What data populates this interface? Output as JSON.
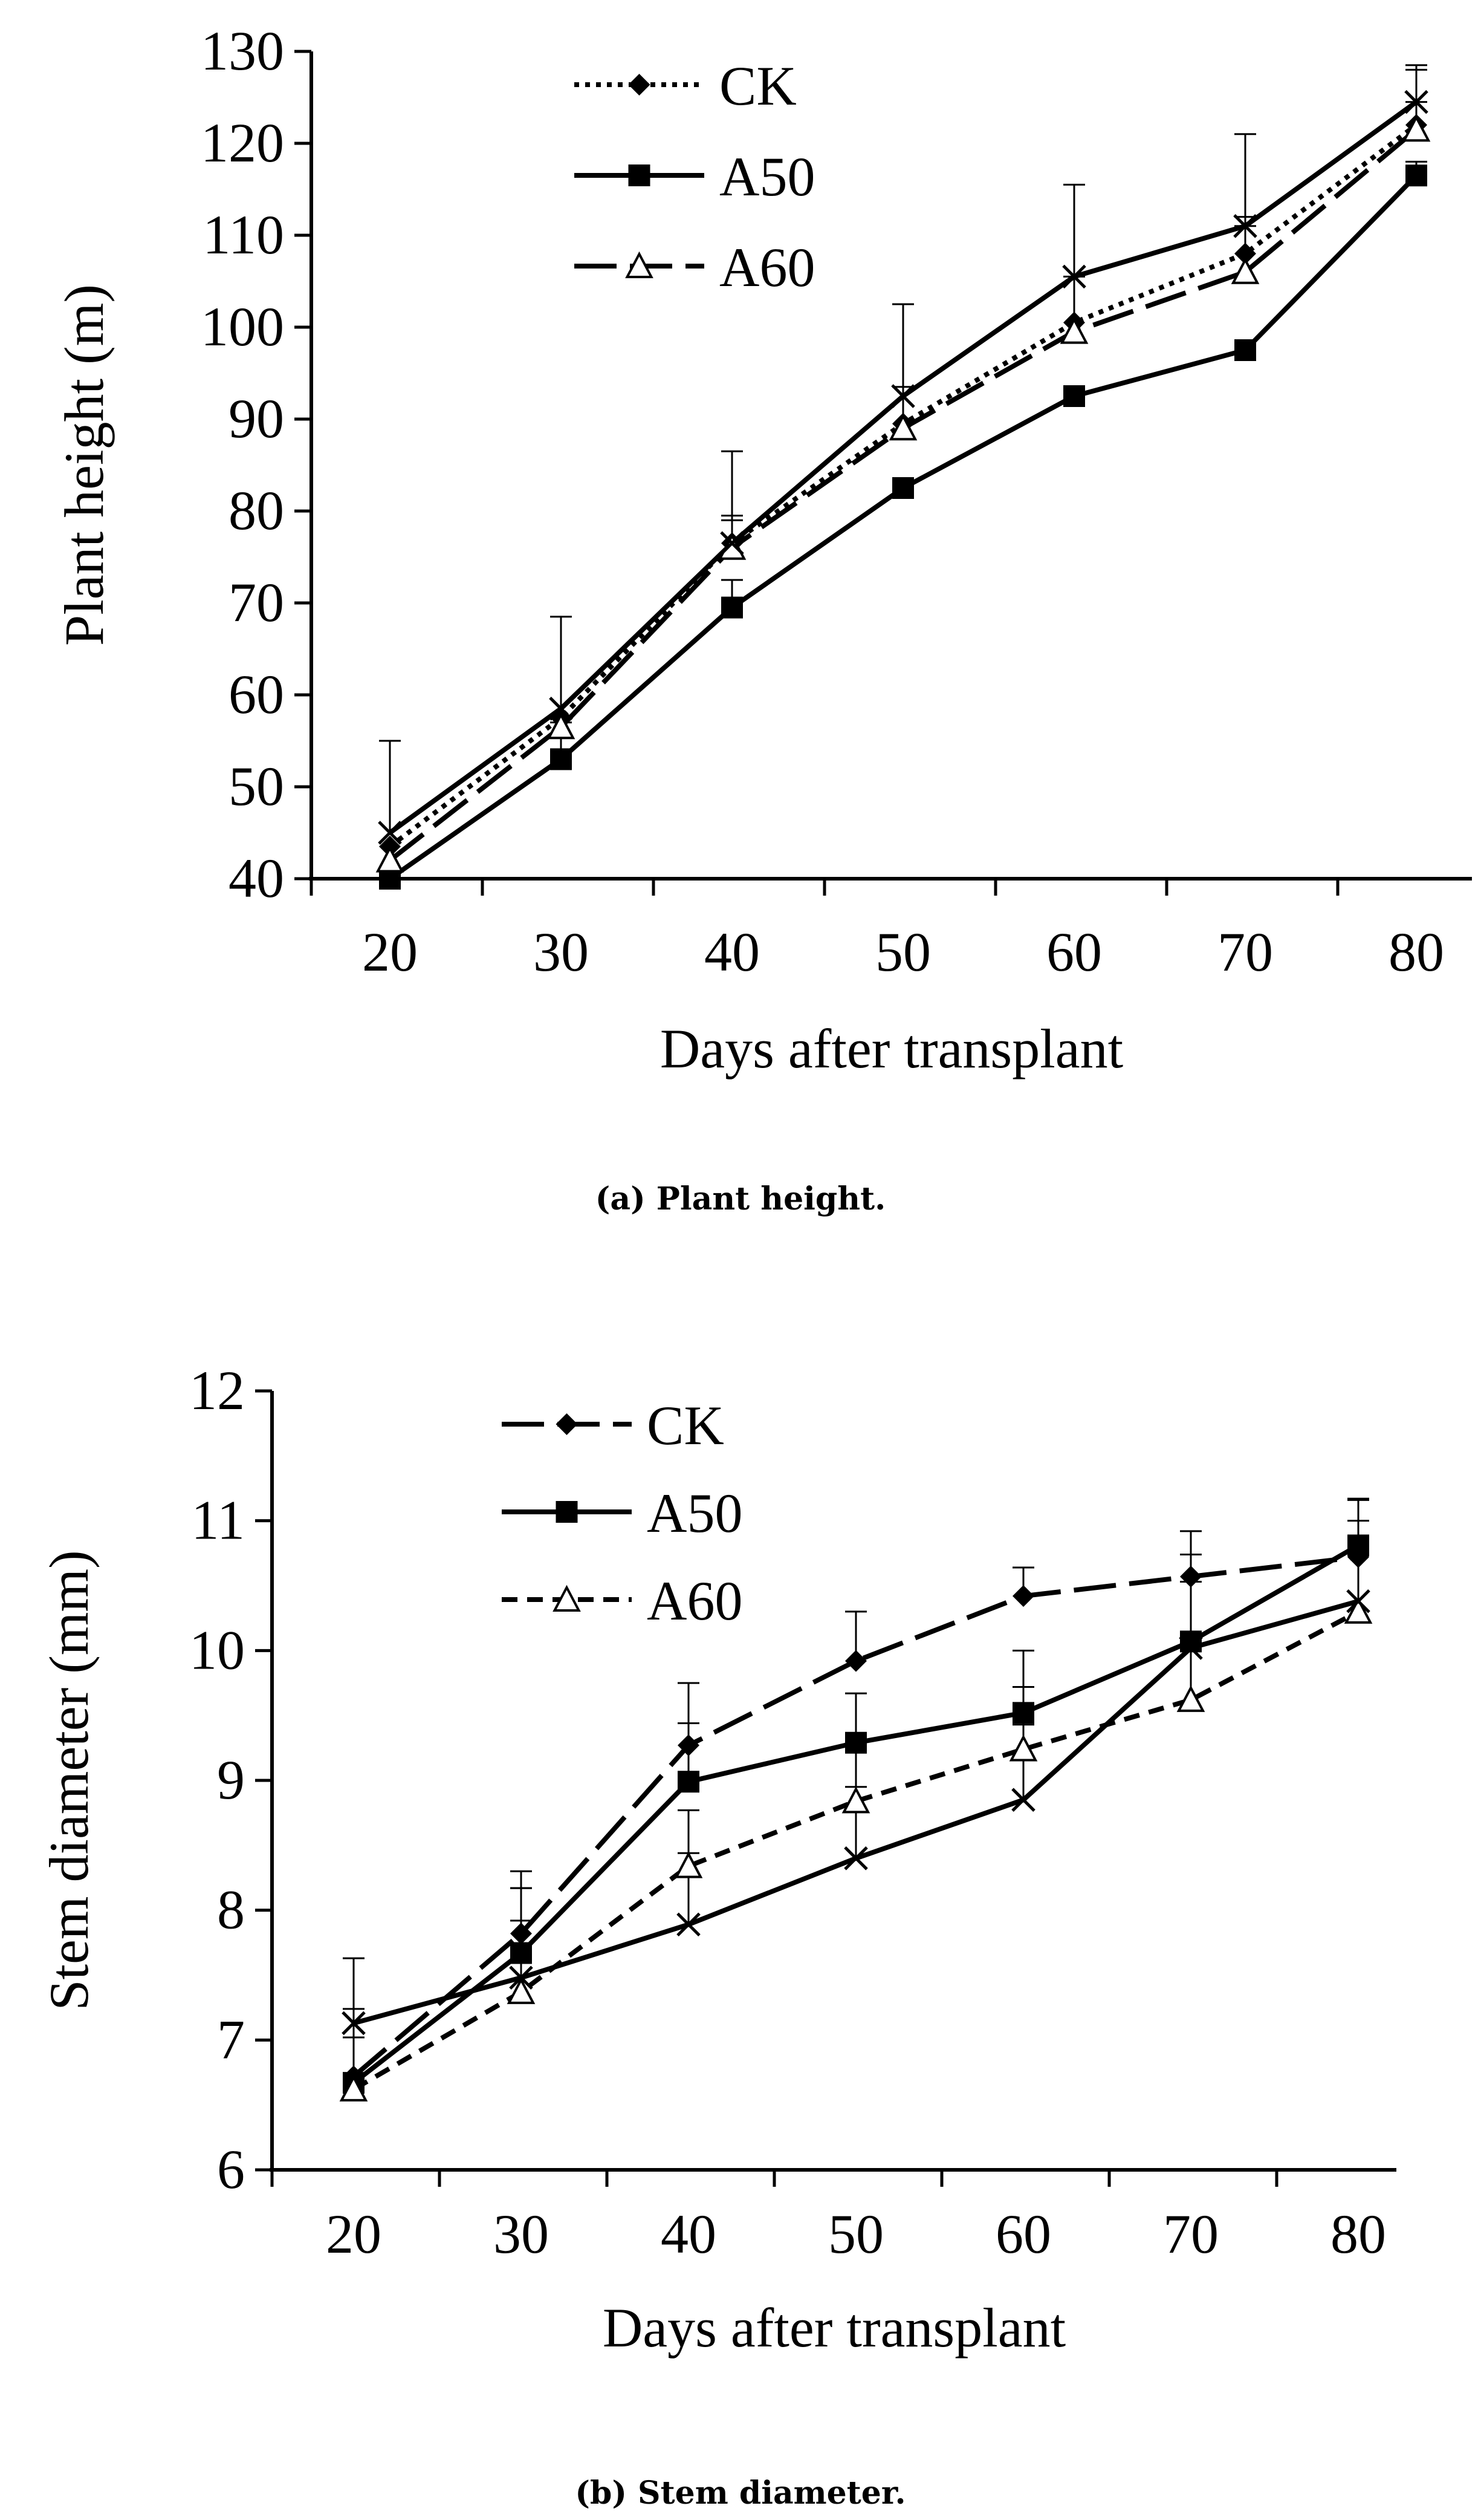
{
  "chart_data": [
    {
      "type": "line",
      "caption": "(a) Plant height.",
      "title": "",
      "xlabel": "Days after transplant",
      "ylabel": "Plant height (m)",
      "categories": [
        "20",
        "30",
        "40",
        "50",
        "60",
        "70",
        "80"
      ],
      "ylim": [
        40,
        130
      ],
      "yticks": [
        40,
        50,
        60,
        70,
        80,
        90,
        100,
        110,
        120,
        130
      ],
      "grid": false,
      "legend_position": "top-left",
      "series": [
        {
          "name": "CK",
          "values": [
            43.5,
            57.5,
            76.5,
            89.5,
            100.5,
            108,
            122
          ],
          "error": [
            0,
            0,
            3,
            4,
            5,
            4,
            6
          ],
          "marker": "diamond",
          "line": "dotted",
          "in_legend": true
        },
        {
          "name": "A50",
          "values": [
            40,
            53,
            69.5,
            82.5,
            92.5,
            97.5,
            116.5
          ],
          "error": [
            0,
            4,
            3,
            0,
            0,
            0,
            1.5
          ],
          "marker": "square",
          "line": "solid",
          "in_legend": true
        },
        {
          "name": "A60",
          "values": [
            42,
            56.5,
            76,
            89,
            99.5,
            106,
            121.5
          ],
          "error": [
            0,
            0,
            3,
            0,
            0,
            5,
            3
          ],
          "marker": "triangle",
          "line": "longdash",
          "in_legend": true
        },
        {
          "name": "",
          "values": [
            45,
            58.5,
            76.5,
            92.5,
            105.5,
            111,
            124.5
          ],
          "error": [
            10,
            10,
            10,
            10,
            10,
            10,
            4
          ],
          "marker": "x",
          "line": "solid",
          "in_legend": false
        }
      ]
    },
    {
      "type": "line",
      "caption": "(b) Stem diameter.",
      "title": "",
      "xlabel": "Days after transplant",
      "ylabel": "Stem diameter (mm)",
      "categories": [
        "20",
        "30",
        "40",
        "50",
        "60",
        "70",
        "80"
      ],
      "ylim": [
        6,
        12
      ],
      "yticks": [
        6,
        7,
        8,
        9,
        10,
        11,
        12
      ],
      "grid": false,
      "legend_position": "top-left",
      "series": [
        {
          "name": "CK",
          "values": [
            6.72,
            7.82,
            9.27,
            9.92,
            10.42,
            10.57,
            10.72
          ],
          "error": [
            0.3,
            0.35,
            0.48,
            0.38,
            0.22,
            0.17,
            0.44
          ],
          "marker": "diamond",
          "line": "longdash",
          "in_legend": true
        },
        {
          "name": "A50",
          "values": [
            6.67,
            7.67,
            8.99,
            9.29,
            9.52,
            10.07,
            10.81
          ],
          "error": [
            0,
            0.5,
            0.45,
            0.38,
            0.48,
            0.46,
            0.36
          ],
          "marker": "square",
          "line": "solid",
          "in_legend": true
        },
        {
          "name": "A60",
          "values": [
            6.62,
            7.37,
            8.34,
            8.84,
            9.24,
            9.62,
            10.3
          ],
          "error": [
            0.62,
            0.55,
            0.43,
            0.4,
            0.48,
            0.5,
            0.55
          ],
          "marker": "triangle",
          "line": "shortdash",
          "in_legend": true
        },
        {
          "name": "",
          "values": [
            7.13,
            7.48,
            7.89,
            8.4,
            8.85,
            10.02,
            10.38
          ],
          "error": [
            0.5,
            0.82,
            0.55,
            0.55,
            0.58,
            0.9,
            0.62
          ],
          "marker": "x",
          "line": "solid",
          "in_legend": false
        }
      ]
    }
  ]
}
